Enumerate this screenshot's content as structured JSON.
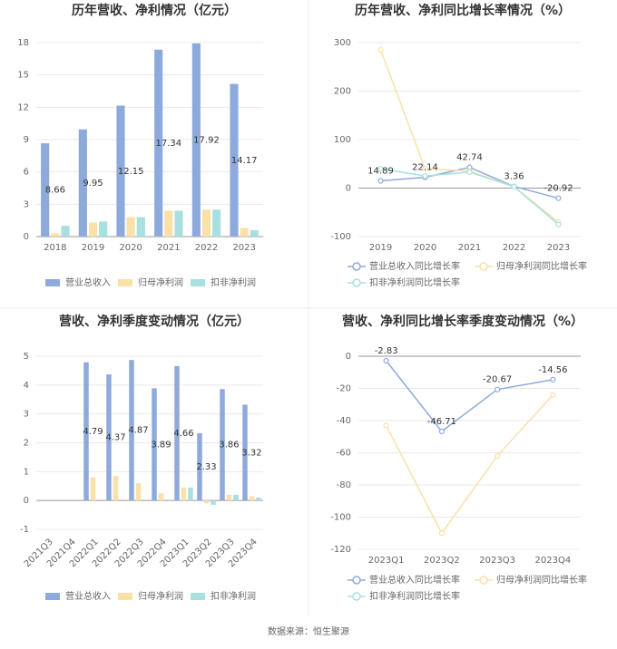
{
  "chart_data": [
    {
      "type": "bar",
      "title": "历年营收、净利情况（亿元）",
      "categories": [
        "2018",
        "2019",
        "2020",
        "2021",
        "2022",
        "2023"
      ],
      "series": [
        {
          "name": "营业总收入",
          "color": "#8eaadc",
          "labels": true,
          "values": [
            8.66,
            9.95,
            12.15,
            17.34,
            17.92,
            14.17
          ]
        },
        {
          "name": "归母净利润",
          "color": "#fbe0a8",
          "values": [
            0.3,
            1.3,
            1.8,
            2.4,
            2.5,
            0.8
          ]
        },
        {
          "name": "扣非净利润",
          "color": "#a8e0e0",
          "values": [
            1.0,
            1.4,
            1.8,
            2.4,
            2.5,
            0.6
          ]
        }
      ],
      "ylim": [
        0,
        18
      ],
      "yticks": [
        0,
        3,
        6,
        9,
        12,
        15,
        18
      ],
      "grid": true
    },
    {
      "type": "line",
      "title": "历年营收、净利同比增长率情况（%）",
      "categories": [
        "2019",
        "2020",
        "2021",
        "2022",
        "2023"
      ],
      "series": [
        {
          "name": "营业总收入同比增长率",
          "color": "#8eaadc",
          "labels": true,
          "values": [
            14.89,
            22.14,
            42.74,
            3.36,
            -20.92
          ]
        },
        {
          "name": "归母净利润同比增长率",
          "color": "#fbe0a8",
          "values": [
            285,
            40,
            35,
            3,
            -70
          ]
        },
        {
          "name": "扣非净利润同比增长率",
          "color": "#a8e0e0",
          "values": [
            40,
            25,
            33,
            3,
            -75
          ]
        }
      ],
      "ylim": [
        -100,
        300
      ],
      "yticks": [
        -100,
        0,
        100,
        200,
        300
      ],
      "grid": true
    },
    {
      "type": "bar",
      "title": "营收、净利季度变动情况（亿元）",
      "categories": [
        "2021Q3",
        "2021Q4",
        "2022Q1",
        "2022Q2",
        "2022Q3",
        "2022Q4",
        "2023Q1",
        "2023Q2",
        "2023Q3",
        "2023Q4"
      ],
      "series": [
        {
          "name": "营业总收入",
          "color": "#8eaadc",
          "labels": true,
          "values": [
            null,
            null,
            4.79,
            4.37,
            4.87,
            3.89,
            4.66,
            2.33,
            3.86,
            3.32
          ]
        },
        {
          "name": "归母净利润",
          "color": "#fbe0a8",
          "values": [
            null,
            null,
            0.8,
            0.85,
            0.6,
            0.25,
            0.45,
            -0.1,
            0.2,
            0.15
          ]
        },
        {
          "name": "扣非净利润",
          "color": "#a8e0e0",
          "values": [
            null,
            null,
            null,
            null,
            null,
            null,
            0.45,
            -0.15,
            0.2,
            0.1
          ]
        }
      ],
      "ylim": [
        -1,
        5
      ],
      "yticks": [
        -1,
        0,
        1,
        2,
        3,
        4,
        5
      ],
      "grid": true
    },
    {
      "type": "line",
      "title": "营收、净利同比增长率季度变动情况（%）",
      "categories": [
        "2023Q1",
        "2023Q2",
        "2023Q3",
        "2023Q4"
      ],
      "series": [
        {
          "name": "营业总收入同比增长率",
          "color": "#8eaadc",
          "labels": true,
          "values": [
            -2.83,
            -46.71,
            -20.67,
            -14.56
          ]
        },
        {
          "name": "归母净利润同比增长率",
          "color": "#fbe0a8",
          "values": [
            -43,
            -110,
            -62,
            -24
          ]
        },
        {
          "name": "扣非净利润同比增长率",
          "color": "#a8e0e0",
          "values": [
            null,
            null,
            null,
            null
          ]
        }
      ],
      "ylim": [
        -120,
        0
      ],
      "yticks": [
        -120,
        -100,
        -80,
        -60,
        -40,
        -20,
        0
      ],
      "grid": true
    }
  ],
  "source": "数据来源：恒生聚源"
}
